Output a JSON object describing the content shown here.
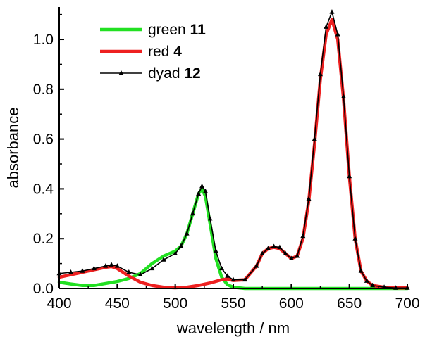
{
  "chart_data": {
    "type": "line",
    "title": "",
    "xlabel": "wavelength / nm",
    "ylabel": "absorbance",
    "xlim": [
      400,
      700
    ],
    "ylim": [
      0,
      1.13
    ],
    "x_ticks": [
      400,
      450,
      500,
      550,
      600,
      650,
      700
    ],
    "y_ticks": [
      0.0,
      0.2,
      0.4,
      0.6,
      0.8,
      1.0
    ],
    "x_tick_labels": [
      "400",
      "450",
      "500",
      "550",
      "600",
      "650",
      "700"
    ],
    "y_tick_labels": [
      "0.0",
      "0.2",
      "0.4",
      "0.6",
      "0.8",
      "1.0"
    ],
    "grid": false,
    "legend_position": "top-left",
    "series": [
      {
        "legend_prefix": "green",
        "legend_number": "11",
        "color": "#22e022",
        "style": "thick-line",
        "x": [
          400,
          410,
          420,
          430,
          440,
          450,
          460,
          470,
          480,
          490,
          500,
          505,
          510,
          515,
          520,
          523,
          526,
          530,
          535,
          540,
          545,
          550,
          560,
          600,
          650,
          700
        ],
        "y": [
          0.025,
          0.018,
          0.012,
          0.012,
          0.02,
          0.028,
          0.04,
          0.06,
          0.1,
          0.13,
          0.15,
          0.17,
          0.22,
          0.3,
          0.38,
          0.4,
          0.37,
          0.26,
          0.12,
          0.045,
          0.015,
          0.005,
          0.0,
          0.0,
          0.0,
          0.0
        ]
      },
      {
        "legend_prefix": "red",
        "legend_number": "4",
        "color": "#ee2020",
        "style": "thick-line",
        "x": [
          400,
          410,
          420,
          430,
          440,
          445,
          450,
          460,
          470,
          480,
          490,
          500,
          510,
          520,
          530,
          540,
          545,
          550,
          560,
          570,
          575,
          580,
          585,
          590,
          595,
          600,
          605,
          610,
          615,
          620,
          625,
          630,
          635,
          640,
          645,
          650,
          655,
          660,
          665,
          670,
          680,
          690,
          700
        ],
        "y": [
          0.045,
          0.055,
          0.065,
          0.075,
          0.085,
          0.088,
          0.08,
          0.05,
          0.025,
          0.012,
          0.005,
          0.003,
          0.005,
          0.012,
          0.022,
          0.035,
          0.038,
          0.032,
          0.035,
          0.09,
          0.14,
          0.16,
          0.165,
          0.16,
          0.14,
          0.12,
          0.13,
          0.2,
          0.35,
          0.58,
          0.84,
          1.02,
          1.08,
          1.0,
          0.76,
          0.45,
          0.2,
          0.07,
          0.03,
          0.012,
          0.005,
          0.002,
          0.002
        ]
      },
      {
        "legend_prefix": "dyad",
        "legend_number": "12",
        "color": "#000000",
        "style": "line-with-triangles",
        "x": [
          400,
          410,
          420,
          430,
          440,
          445,
          450,
          460,
          470,
          480,
          490,
          500,
          505,
          510,
          515,
          520,
          523,
          526,
          530,
          535,
          540,
          545,
          550,
          560,
          570,
          575,
          580,
          585,
          590,
          595,
          600,
          605,
          610,
          615,
          620,
          625,
          630,
          635,
          640,
          645,
          650,
          655,
          660,
          665,
          670,
          680,
          690,
          700
        ],
        "y": [
          0.06,
          0.065,
          0.07,
          0.08,
          0.09,
          0.095,
          0.09,
          0.065,
          0.055,
          0.08,
          0.115,
          0.14,
          0.17,
          0.22,
          0.3,
          0.38,
          0.41,
          0.39,
          0.28,
          0.15,
          0.08,
          0.05,
          0.035,
          0.035,
          0.09,
          0.14,
          0.16,
          0.168,
          0.165,
          0.14,
          0.12,
          0.13,
          0.21,
          0.36,
          0.6,
          0.86,
          1.05,
          1.11,
          1.02,
          0.77,
          0.45,
          0.2,
          0.07,
          0.03,
          0.012,
          0.005,
          0.002,
          0.002
        ]
      }
    ]
  }
}
